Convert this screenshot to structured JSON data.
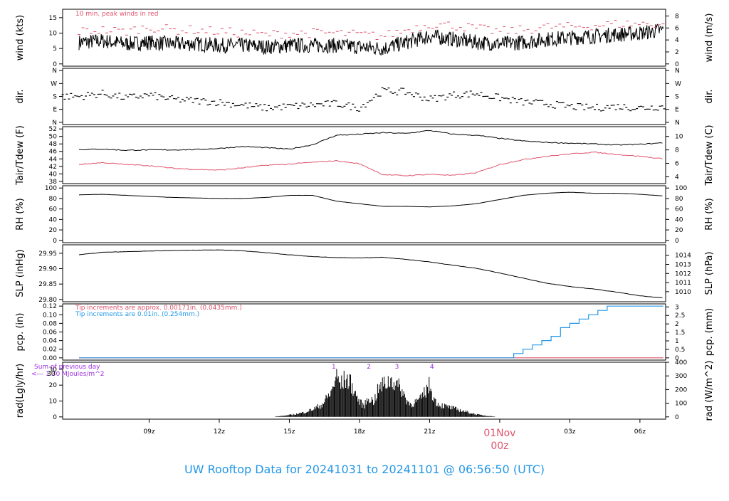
{
  "footer_title": "UW Rooftop Data for 20241031  to  20241101 @ 06:56:50  (UTC)",
  "colors": {
    "black": "#000000",
    "red": "#df536b",
    "blue": "#2297e6",
    "purple": "#9a2ee0",
    "footer": "#2297e6"
  },
  "chart_data": [
    {
      "id": "wind",
      "type": "line",
      "ylabel": "wind (kts)",
      "ylabel_right": "wind (m/s)",
      "ylim": [
        0,
        17
      ],
      "yticks": [
        "0",
        "5",
        "10",
        "15"
      ],
      "yticks_values": [
        0,
        5,
        10,
        15
      ],
      "right_ticks": [
        "0",
        "2",
        "4",
        "6",
        "8"
      ],
      "right_ticks_values": [
        0,
        2,
        4,
        6,
        8
      ],
      "annotation": "10 min. peak winds in red",
      "series": [
        {
          "color": "black",
          "hours": [
            6,
            7,
            8,
            9,
            10,
            11,
            12,
            13,
            14,
            15,
            16,
            17,
            18,
            19,
            20,
            21,
            22,
            23,
            24,
            25,
            26,
            27,
            28,
            29,
            30,
            31
          ],
          "values": [
            7,
            7.5,
            6.5,
            7,
            6.5,
            6.5,
            6,
            6,
            5.5,
            6,
            6,
            6,
            5.5,
            5,
            7,
            9,
            8,
            7,
            6.5,
            7,
            8,
            8.5,
            9,
            9.5,
            10,
            11
          ]
        },
        {
          "color": "red",
          "hours": [
            6,
            7,
            8,
            9,
            10,
            11,
            12,
            13,
            14,
            15,
            16,
            17,
            18,
            19,
            20,
            21,
            22,
            23,
            24,
            25,
            26,
            27,
            28,
            29,
            30,
            31
          ],
          "values": [
            10.5,
            11,
            10.5,
            12,
            11,
            11,
            10.5,
            10,
            9.5,
            10,
            10,
            10,
            9.5,
            9,
            11,
            13,
            12.5,
            11.5,
            10.5,
            11,
            12,
            12,
            12.5,
            13,
            13,
            13
          ]
        }
      ]
    },
    {
      "id": "dir",
      "type": "scatter",
      "ylabel": "dir.",
      "ylabel_right": "dir.",
      "ylim": [
        0,
        360
      ],
      "yticks": [
        "N",
        "E",
        "S",
        "W",
        "N"
      ],
      "yticks_values": [
        0,
        90,
        180,
        270,
        360
      ],
      "right_ticks": [
        "N",
        "E",
        "S",
        "W",
        "N"
      ],
      "right_ticks_values": [
        0,
        90,
        180,
        270,
        360
      ],
      "series": [
        {
          "color": "black",
          "hours": [
            6,
            7,
            8,
            9,
            10,
            11,
            12,
            13,
            14,
            15,
            16,
            17,
            18,
            19,
            20,
            21,
            22,
            23,
            24,
            25,
            26,
            27,
            28,
            29,
            30,
            31
          ],
          "values": [
            180,
            200,
            170,
            190,
            160,
            150,
            140,
            120,
            100,
            110,
            120,
            130,
            100,
            220,
            210,
            160,
            190,
            200,
            170,
            140,
            130,
            110,
            100,
            110,
            100,
            110
          ]
        }
      ]
    },
    {
      "id": "temp",
      "type": "line",
      "ylabel": "Tair/Tdew (F)",
      "ylabel_right": "Tair/Tdew (C)",
      "ylim": [
        38,
        52
      ],
      "yticks": [
        "38",
        "40",
        "42",
        "44",
        "46",
        "48",
        "50",
        "52"
      ],
      "yticks_values": [
        38,
        40,
        42,
        44,
        46,
        48,
        50,
        52
      ],
      "right_ticks": [
        "4",
        "6",
        "8",
        "10"
      ],
      "right_ticks_values": [
        4,
        6,
        8,
        10
      ],
      "series": [
        {
          "color": "black",
          "hours": [
            6,
            7,
            8,
            9,
            10,
            11,
            12,
            13,
            14,
            15,
            16,
            17,
            18,
            19,
            20,
            21,
            22,
            23,
            24,
            25,
            26,
            27,
            28,
            29,
            30,
            31
          ],
          "values": [
            46.5,
            46.6,
            46.3,
            46.4,
            46.4,
            46.5,
            46.8,
            47.3,
            47.0,
            46.6,
            47.8,
            50.3,
            50.6,
            51.0,
            50.8,
            51.6,
            50.6,
            50.3,
            49.5,
            48.8,
            48.4,
            48.2,
            48.0,
            47.7,
            47.9,
            48.3
          ]
        },
        {
          "color": "red",
          "hours": [
            6,
            7,
            8,
            9,
            10,
            11,
            12,
            13,
            14,
            15,
            16,
            17,
            18,
            19,
            20,
            21,
            22,
            23,
            24,
            25,
            26,
            27,
            28,
            29,
            30,
            31
          ],
          "values": [
            42.5,
            43.0,
            42.5,
            42.2,
            41.5,
            41.2,
            41.0,
            41.6,
            42.3,
            42.6,
            43.1,
            43.5,
            42.7,
            39.8,
            39.5,
            39.9,
            39.6,
            40.3,
            42.5,
            43.8,
            44.7,
            45.3,
            45.8,
            45.2,
            44.7,
            44.0
          ]
        }
      ]
    },
    {
      "id": "rh",
      "type": "line",
      "ylabel": "RH (%)",
      "ylabel_right": "RH (%)",
      "ylim": [
        0,
        100
      ],
      "yticks": [
        "0",
        "20",
        "40",
        "60",
        "80",
        "100"
      ],
      "yticks_values": [
        0,
        20,
        40,
        60,
        80,
        100
      ],
      "right_ticks": [
        "0",
        "20",
        "40",
        "60",
        "80",
        "100"
      ],
      "right_ticks_values": [
        0,
        20,
        40,
        60,
        80,
        100
      ],
      "series": [
        {
          "color": "black",
          "hours": [
            6,
            7,
            8,
            9,
            10,
            11,
            12,
            13,
            14,
            15,
            16,
            17,
            18,
            19,
            20,
            21,
            22,
            23,
            24,
            25,
            26,
            27,
            28,
            29,
            30,
            31
          ],
          "values": [
            87,
            88,
            86,
            84,
            82,
            81,
            80,
            80,
            82,
            86,
            86,
            75,
            70,
            65,
            65,
            64,
            66,
            70,
            78,
            86,
            90,
            92,
            90,
            90,
            88,
            85
          ]
        }
      ]
    },
    {
      "id": "slp",
      "type": "line",
      "ylabel": "SLP (inHg)",
      "ylabel_right": "SLP (hPa)",
      "ylim": [
        29.8,
        29.97
      ],
      "yticks": [
        "29.80",
        "29.85",
        "29.90",
        "29.95"
      ],
      "yticks_values": [
        29.8,
        29.85,
        29.9,
        29.95
      ],
      "right_ticks": [
        "1010",
        "1011",
        "1012",
        "1013",
        "1014"
      ],
      "right_ticks_values": [
        1010,
        1011,
        1012,
        1013,
        1014
      ],
      "series": [
        {
          "color": "black",
          "hours": [
            6,
            7,
            8,
            9,
            10,
            11,
            12,
            13,
            14,
            15,
            16,
            17,
            18,
            19,
            20,
            21,
            22,
            23,
            24,
            25,
            26,
            27,
            28,
            29,
            30,
            31
          ],
          "values": [
            29.945,
            29.953,
            29.955,
            29.957,
            29.959,
            29.96,
            29.961,
            29.958,
            29.952,
            29.945,
            29.939,
            29.936,
            29.935,
            29.937,
            29.93,
            29.922,
            29.911,
            29.901,
            29.886,
            29.869,
            29.853,
            29.842,
            29.834,
            29.824,
            29.812,
            29.805
          ]
        }
      ]
    },
    {
      "id": "pcp",
      "type": "line",
      "ylabel": "pcp. (in)",
      "ylabel_right": "pcp. (mm)",
      "ylim": [
        0,
        0.12
      ],
      "yticks": [
        "0.00",
        "0.02",
        "0.04",
        "0.06",
        "0.08",
        "0.10",
        "0.12"
      ],
      "yticks_values": [
        0,
        0.02,
        0.04,
        0.06,
        0.08,
        0.1,
        0.12
      ],
      "right_ticks": [
        "0",
        "0.5",
        "1",
        "1.5",
        "2",
        "2.5",
        "3"
      ],
      "right_ticks_values": [
        0,
        0.5,
        1,
        1.5,
        2,
        2.5,
        3
      ],
      "annotations": [
        "Tip increments are approx. 0.00171in. (0.0435mm.)",
        "Tip increments are 0.01in. (0.254mm.)"
      ],
      "series": [
        {
          "color": "red",
          "hours": [
            6,
            31
          ],
          "values": [
            0,
            0
          ]
        },
        {
          "color": "blue",
          "hours": [
            6,
            24.3,
            24.6,
            25,
            25.4,
            25.8,
            26.2,
            26.6,
            27,
            27.4,
            27.8,
            28.2,
            28.6,
            29,
            31
          ],
          "values": [
            0,
            0,
            0.01,
            0.02,
            0.03,
            0.04,
            0.05,
            0.07,
            0.08,
            0.09,
            0.1,
            0.11,
            0.12,
            0.12,
            0.12
          ]
        }
      ]
    },
    {
      "id": "rad",
      "type": "bar",
      "ylabel": "rad(Lgly/hr)",
      "ylabel_right": "rad (W/m^2)",
      "ylim": [
        0,
        33
      ],
      "yticks": [
        "0",
        "10",
        "20",
        "30"
      ],
      "yticks_values": [
        0,
        10,
        20,
        30
      ],
      "right_ticks": [
        "0",
        "100",
        "200",
        "300",
        "400"
      ],
      "right_ticks_values": [
        0,
        100,
        200,
        300,
        400
      ],
      "annotations": [
        "Sum of previous day",
        "<--- 1.30 MJoules/m^2",
        "30",
        "1",
        "2",
        "3",
        "4"
      ],
      "annotation_marks": [
        {
          "label": "1",
          "hour": 16.9
        },
        {
          "label": "2",
          "hour": 18.4
        },
        {
          "label": "3",
          "hour": 19.6
        },
        {
          "label": "4",
          "hour": 21.1
        }
      ],
      "series": [
        {
          "color": "black",
          "hours": [
            14.4,
            14.8,
            15.2,
            15.6,
            16.0,
            16.4,
            16.8,
            17.0,
            17.2,
            17.4,
            17.6,
            17.8,
            18.0,
            18.2,
            18.4,
            18.6,
            18.8,
            19.0,
            19.2,
            19.4,
            19.6,
            19.8,
            20.0,
            20.2,
            20.4,
            20.6,
            20.8,
            21.0,
            21.2,
            21.4,
            21.6,
            21.8,
            22.0,
            22.2,
            22.4,
            22.6,
            22.8,
            23.0,
            23.4,
            23.8
          ],
          "values": [
            0.3,
            1,
            2,
            3.5,
            6,
            10,
            20,
            33,
            26,
            31,
            28,
            20,
            12,
            9,
            16,
            12,
            22,
            26,
            28,
            30,
            26,
            22,
            14,
            10,
            12,
            14,
            20,
            26,
            14,
            10,
            9,
            8,
            7,
            6,
            5,
            4,
            3,
            2,
            1,
            0.3
          ]
        }
      ]
    }
  ],
  "x_axis": {
    "xlim": [
      5.3,
      31.1
    ],
    "ticks": [
      "09z",
      "12z",
      "15z",
      "18z",
      "21z",
      "03z",
      "06z"
    ],
    "ticks_hours": [
      9,
      12,
      15,
      18,
      21,
      27,
      30
    ],
    "date_label": "01Nov",
    "date_sublabel": "00z",
    "date_hour": 24
  }
}
